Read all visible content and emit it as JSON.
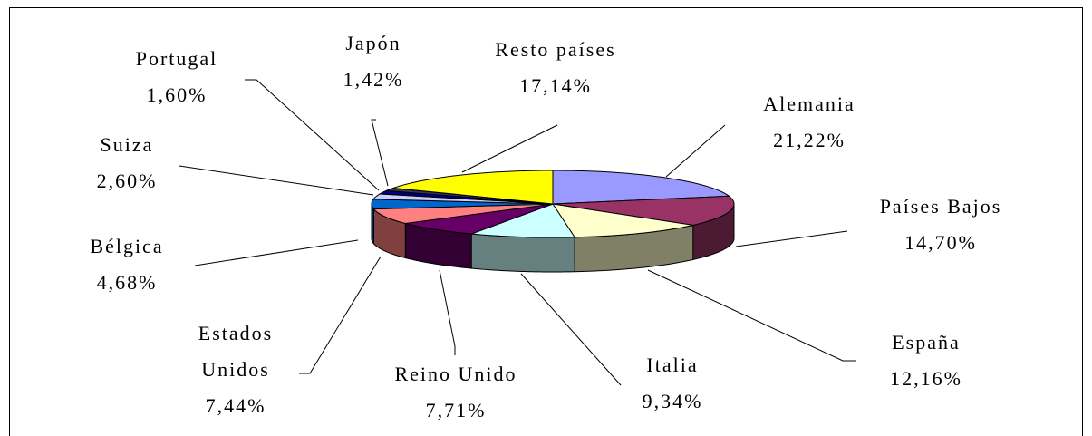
{
  "chart_data": {
    "type": "pie3d",
    "categories": [
      "Alemania",
      "Países Bajos",
      "España",
      "Italia",
      "Reino Unido",
      "Estados Unidos",
      "Bélgica",
      "Suiza",
      "Portugal",
      "Japón",
      "Resto países"
    ],
    "values": [
      21.22,
      14.7,
      12.16,
      9.34,
      7.71,
      7.44,
      4.68,
      2.6,
      1.6,
      1.42,
      17.14
    ],
    "value_labels": [
      "21,22%",
      "14,70%",
      "12,16%",
      "9,34%",
      "7,71%",
      "7,44%",
      "4,68%",
      "2,60%",
      "1,60%",
      "1,42%",
      "17,14%"
    ],
    "colors": [
      "#9999ff",
      "#993366",
      "#ffffcc",
      "#ccffff",
      "#660066",
      "#ff8080",
      "#0066cc",
      "#ccccff",
      "#000080",
      "#333366",
      "#ffff00"
    ]
  }
}
